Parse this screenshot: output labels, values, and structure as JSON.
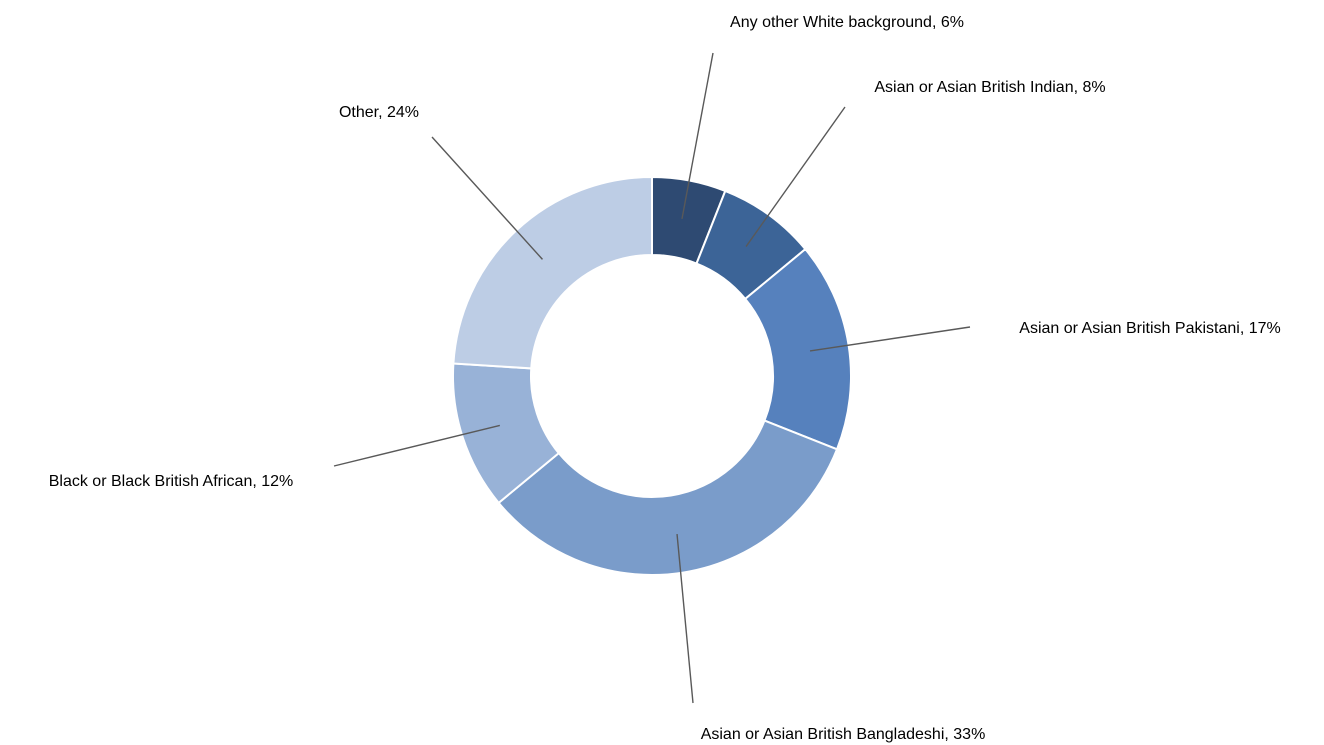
{
  "chart_data": {
    "type": "pie",
    "variant": "donut",
    "title": "",
    "legend": "none",
    "slices": [
      {
        "label": "Any other White background",
        "value": 6,
        "display": "Any other White background, 6%",
        "color": "#2e4a72"
      },
      {
        "label": "Asian or Asian British Indian",
        "value": 8,
        "display": "Asian or Asian British Indian, 8%",
        "color": "#3c6497"
      },
      {
        "label": "Asian or Asian British Pakistani",
        "value": 17,
        "display": "Asian or Asian British Pakistani, 17%",
        "color": "#5681bd"
      },
      {
        "label": "Asian or Asian British Bangladeshi",
        "value": 33,
        "display": "Asian or Asian British Bangladeshi, 33%",
        "color": "#7a9cca"
      },
      {
        "label": "Black or Black British African",
        "value": 12,
        "display": "Black or Black British African, 12%",
        "color": "#98b2d7"
      },
      {
        "label": "Other",
        "value": 24,
        "display": "Other, 24%",
        "color": "#bdcde5"
      }
    ]
  }
}
